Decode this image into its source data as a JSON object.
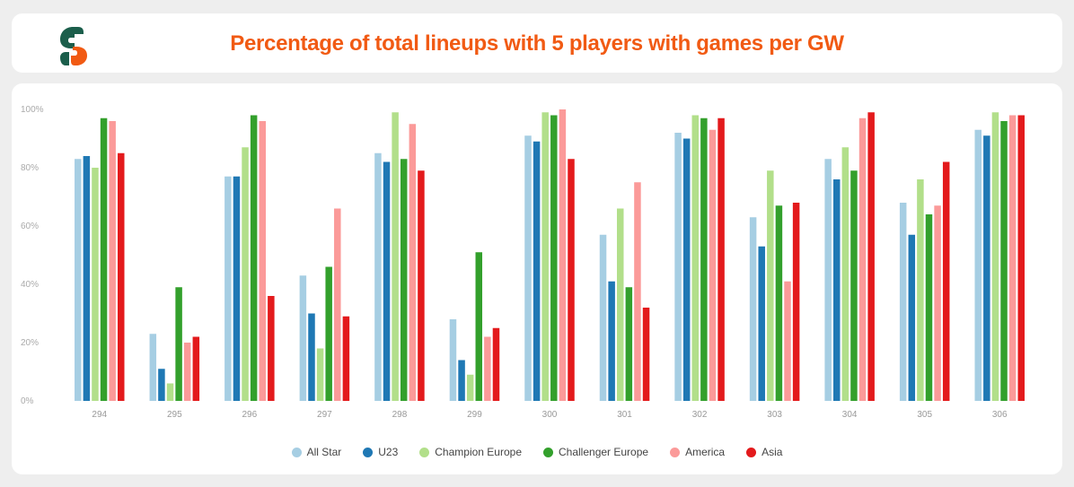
{
  "header": {
    "title": "Percentage of total lineups with 5 players with games per GW",
    "logo_icon": "sorare-s-logo-icon"
  },
  "colors": {
    "title": "#f15a13",
    "logo_green": "#1b5e4b",
    "logo_orange": "#f15a13"
  },
  "chart_data": {
    "type": "bar",
    "title": "Percentage of total lineups with 5 players with games per GW",
    "xlabel": "",
    "ylabel": "",
    "ylim": [
      0,
      100
    ],
    "y_ticks": [
      "0%",
      "20%",
      "40%",
      "60%",
      "80%",
      "100%"
    ],
    "y_tick_values": [
      0,
      20,
      40,
      60,
      80,
      100
    ],
    "categories": [
      "294",
      "295",
      "296",
      "297",
      "298",
      "299",
      "300",
      "301",
      "302",
      "303",
      "304",
      "305",
      "306"
    ],
    "legend_position": "bottom",
    "series": [
      {
        "name": "All Star",
        "color": "#a6cee3",
        "values": [
          83,
          23,
          77,
          43,
          85,
          28,
          91,
          57,
          92,
          63,
          83,
          68,
          93
        ]
      },
      {
        "name": "U23",
        "color": "#1f78b4",
        "values": [
          84,
          11,
          77,
          30,
          82,
          14,
          89,
          41,
          90,
          53,
          76,
          57,
          91
        ]
      },
      {
        "name": "Champion Europe",
        "color": "#b2df8a",
        "values": [
          80,
          6,
          87,
          18,
          99,
          9,
          99,
          66,
          98,
          79,
          87,
          76,
          99
        ]
      },
      {
        "name": "Challenger Europe",
        "color": "#33a02c",
        "values": [
          97,
          39,
          98,
          46,
          83,
          51,
          98,
          39,
          97,
          67,
          79,
          64,
          96
        ]
      },
      {
        "name": "America",
        "color": "#fb9a99",
        "values": [
          96,
          20,
          96,
          66,
          95,
          22,
          100,
          75,
          93,
          41,
          97,
          67,
          98
        ]
      },
      {
        "name": "Asia",
        "color": "#e31a1c",
        "values": [
          85,
          22,
          36,
          29,
          79,
          25,
          83,
          32,
          97,
          68,
          99,
          82,
          98
        ]
      }
    ]
  }
}
